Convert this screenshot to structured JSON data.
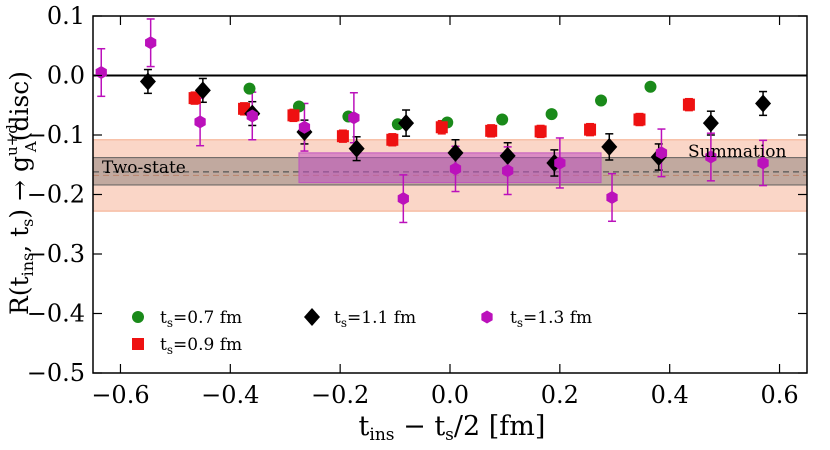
{
  "chart_data": {
    "type": "scatter",
    "xlabel": {
      "main": "t",
      "sub": "ins",
      "rest": " − t",
      "sub2": "s",
      "tail": "/2 [fm]"
    },
    "ylabel": {
      "prefix": "R(t",
      "sub1": "ins",
      "mid": ", t",
      "sub2": "s",
      "close": ") → g",
      "sup": "u+d",
      "subA": "A",
      "tail": "(disc)"
    },
    "xlim": [
      -0.65,
      0.65
    ],
    "ylim": [
      -0.5,
      0.1
    ],
    "xticks": [
      -0.6,
      -0.4,
      -0.2,
      0.0,
      0.2,
      0.4,
      0.6
    ],
    "xtick_labels": [
      "−0.6",
      "−0.4",
      "−0.2",
      "0.0",
      "0.2",
      "0.4",
      "0.6"
    ],
    "yticks": [
      0.1,
      0.0,
      -0.1,
      -0.2,
      -0.3,
      -0.4,
      -0.5
    ],
    "ytick_labels": [
      "0.1",
      "0.0",
      "−0.1",
      "−0.2",
      "−0.3",
      "−0.4",
      "−0.5"
    ],
    "zero_line": 0.0,
    "bands": [
      {
        "name": "Summation",
        "label": "Summation",
        "y_center": -0.168,
        "y_low": -0.228,
        "y_high": -0.108,
        "x_range": [
          -0.65,
          0.65
        ],
        "color": "#f4a582",
        "opacity": 0.45,
        "dashed_center": true
      },
      {
        "name": "Two-state",
        "label": "Two-state",
        "y_center": -0.162,
        "y_low": -0.184,
        "y_high": -0.138,
        "x_range": [
          -0.65,
          0.65
        ],
        "color": "#555555",
        "opacity": 0.35,
        "dashed_center": true
      },
      {
        "name": "Plateau",
        "label": "",
        "y_center": -0.16,
        "y_low": -0.18,
        "y_high": -0.13,
        "x_range": [
          -0.275,
          0.275
        ],
        "color": "#c050c0",
        "opacity": 0.55,
        "dashed_center": false
      }
    ],
    "series": [
      {
        "name": "ts_0.7",
        "label_prefix": "t",
        "label_sub": "s",
        "label_value": "=0.7 fm",
        "marker": "circle",
        "color": "#1a8a1a",
        "x": [
          -0.365,
          -0.275,
          -0.185,
          -0.095,
          -0.005,
          0.095,
          0.185,
          0.275,
          0.365
        ],
        "y": [
          -0.022,
          -0.052,
          -0.069,
          -0.082,
          -0.079,
          -0.074,
          -0.065,
          -0.042,
          -0.019
        ],
        "err": [
          0.005,
          0.005,
          0.005,
          0.006,
          0.006,
          0.006,
          0.005,
          0.005,
          0.005
        ]
      },
      {
        "name": "ts_0.9",
        "label_prefix": "t",
        "label_sub": "s",
        "label_value": "=0.9 fm",
        "marker": "square",
        "color": "#ee1111",
        "x": [
          -0.465,
          -0.375,
          -0.285,
          -0.195,
          -0.105,
          -0.015,
          0.075,
          0.165,
          0.255,
          0.345,
          0.435
        ],
        "y": [
          -0.038,
          -0.056,
          -0.067,
          -0.102,
          -0.108,
          -0.087,
          -0.093,
          -0.094,
          -0.091,
          -0.074,
          -0.049
        ],
        "err": [
          0.01,
          0.01,
          0.01,
          0.01,
          0.01,
          0.011,
          0.01,
          0.01,
          0.01,
          0.01,
          0.01
        ]
      },
      {
        "name": "ts_1.1",
        "label_prefix": "t",
        "label_sub": "s",
        "label_value": "=1.1 fm",
        "marker": "diamond",
        "color": "#000000",
        "x": [
          -0.55,
          -0.45,
          -0.36,
          -0.265,
          -0.17,
          -0.08,
          0.01,
          0.105,
          0.19,
          0.29,
          0.38,
          0.475,
          0.57
        ],
        "y": [
          -0.01,
          -0.025,
          -0.064,
          -0.095,
          -0.123,
          -0.08,
          -0.13,
          -0.135,
          -0.147,
          -0.12,
          -0.137,
          -0.08,
          -0.047
        ],
        "err": [
          0.02,
          0.02,
          0.02,
          0.02,
          0.02,
          0.022,
          0.022,
          0.022,
          0.022,
          0.022,
          0.022,
          0.02,
          0.02
        ]
      },
      {
        "name": "ts_1.3",
        "label_prefix": "t",
        "label_sub": "s",
        "label_value": "=1.3 fm",
        "marker": "hexagon",
        "color": "#bb11bb",
        "x": [
          -0.635,
          -0.545,
          -0.455,
          -0.36,
          -0.265,
          -0.175,
          -0.085,
          0.01,
          0.105,
          0.2,
          0.295,
          0.385,
          0.475,
          0.57
        ],
        "y": [
          0.005,
          0.055,
          -0.078,
          -0.068,
          -0.087,
          -0.071,
          -0.207,
          -0.157,
          -0.16,
          -0.147,
          -0.205,
          -0.13,
          -0.137,
          -0.147
        ],
        "err": [
          0.04,
          0.04,
          0.04,
          0.04,
          0.04,
          0.042,
          0.04,
          0.038,
          0.04,
          0.042,
          0.04,
          0.04,
          0.04,
          0.038
        ]
      }
    ],
    "legend_order": [
      0,
      2,
      3,
      1
    ]
  }
}
